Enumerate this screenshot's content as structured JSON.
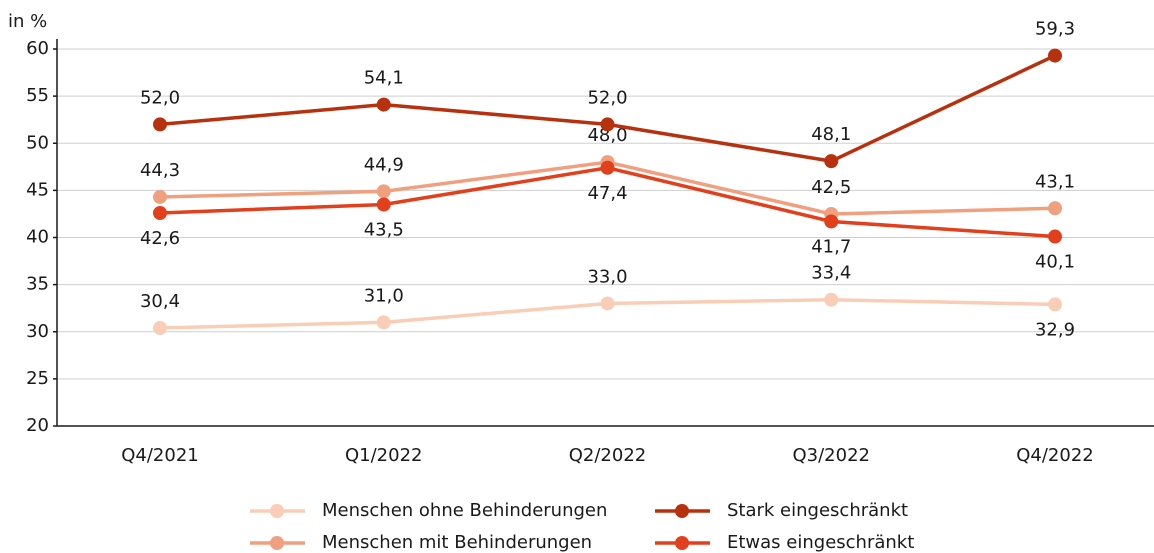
{
  "chart_data": {
    "type": "line",
    "y_label": "in %",
    "categories": [
      "Q4/2021",
      "Q1/2022",
      "Q2/2022",
      "Q3/2022",
      "Q4/2022"
    ],
    "series": [
      {
        "name": "Menschen ohne Behinderungen",
        "color": "#f9cdb6",
        "values": [
          30.4,
          31.0,
          33.0,
          33.4,
          32.9
        ],
        "value_labels": [
          "30,4",
          "31,0",
          "33,0",
          "33,4",
          "32,9"
        ]
      },
      {
        "name": "Menschen mit Behinderungen",
        "color": "#f0a07e",
        "values": [
          44.3,
          44.9,
          48.0,
          42.5,
          43.1
        ],
        "value_labels": [
          "44,3",
          "44,9",
          "48,0",
          "42,5",
          "43,1"
        ]
      },
      {
        "name": "Stark eingeschränkt",
        "color": "#b8310f",
        "values": [
          52.0,
          54.1,
          52.0,
          48.1,
          59.3
        ],
        "value_labels": [
          "52,0",
          "54,1",
          "52,0",
          "48,1",
          "59,3"
        ]
      },
      {
        "name": "Etwas eingeschränkt",
        "color": "#e2401c",
        "values": [
          42.6,
          43.5,
          47.4,
          41.7,
          40.1
        ],
        "value_labels": [
          "42,6",
          "43,5",
          "47,4",
          "41,7",
          "40,1"
        ]
      }
    ],
    "ylim": [
      20,
      60
    ],
    "yticks": [
      20,
      25,
      30,
      35,
      40,
      45,
      50,
      55,
      60
    ],
    "grid": true
  }
}
